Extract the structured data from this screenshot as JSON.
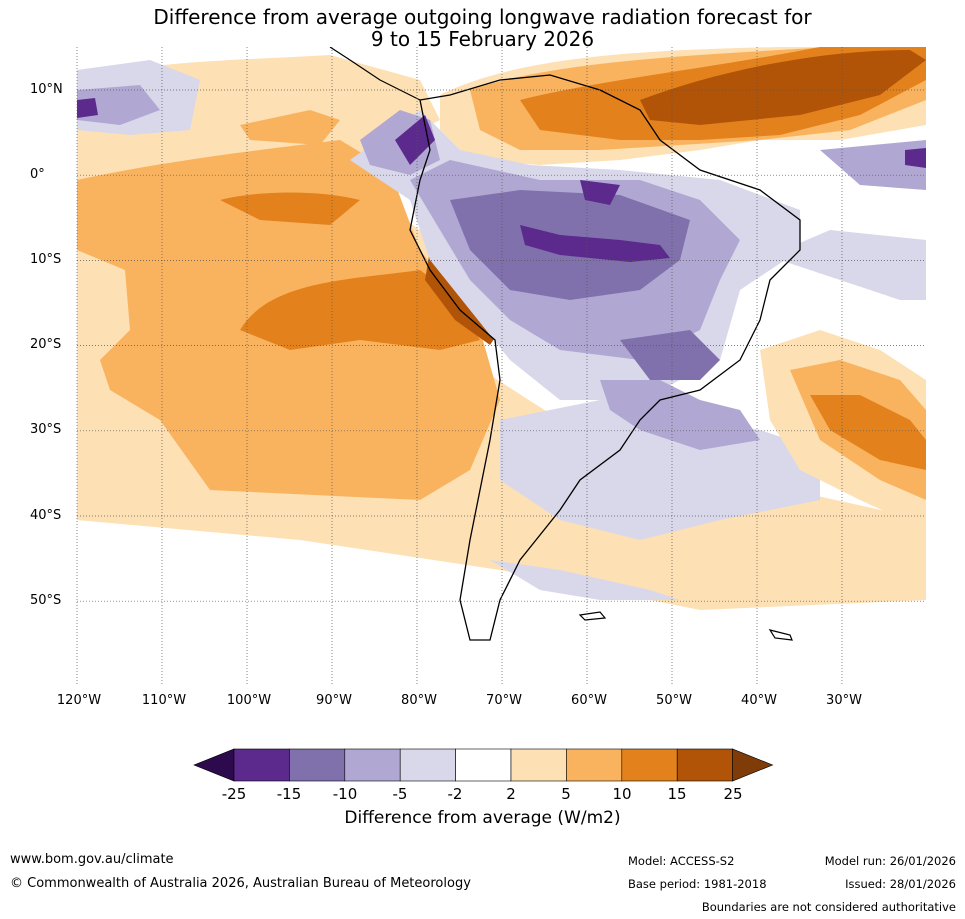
{
  "title": {
    "line1": "Difference from average outgoing longwave radiation forecast for",
    "line2": "9 to 15 February 2026"
  },
  "map": {
    "lat_labels": [
      "10°N",
      "0°",
      "10°S",
      "20°S",
      "30°S",
      "40°S",
      "50°S"
    ],
    "lon_labels": [
      "120°W",
      "110°W",
      "100°W",
      "90°W",
      "80°W",
      "70°W",
      "60°W",
      "50°W",
      "40°W",
      "30°W"
    ]
  },
  "colorbar": {
    "labels": [
      "-25",
      "-15",
      "-10",
      "-5",
      "-2",
      "2",
      "5",
      "10",
      "15",
      "25"
    ],
    "colors": [
      "#2d0a4e",
      "#5b2a8c",
      "#8071ad",
      "#b0a8d2",
      "#d8d8ea",
      "#ffffff",
      "#fde0b4",
      "#f9b35f",
      "#e3821d",
      "#b25407",
      "#7f3b08"
    ],
    "title": "Difference from average (W/m2)"
  },
  "footer": {
    "website": "www.bom.gov.au/climate",
    "copyright": "© Commonwealth of Australia 2026, Australian Bureau of Meteorology",
    "model": "Model: ACCESS-S2",
    "base_period": "Base period: 1981-2018",
    "model_run": "Model run: 26/01/2026",
    "issued": "Issued: 28/01/2026",
    "disclaimer": "Boundaries are not considered authoritative"
  }
}
